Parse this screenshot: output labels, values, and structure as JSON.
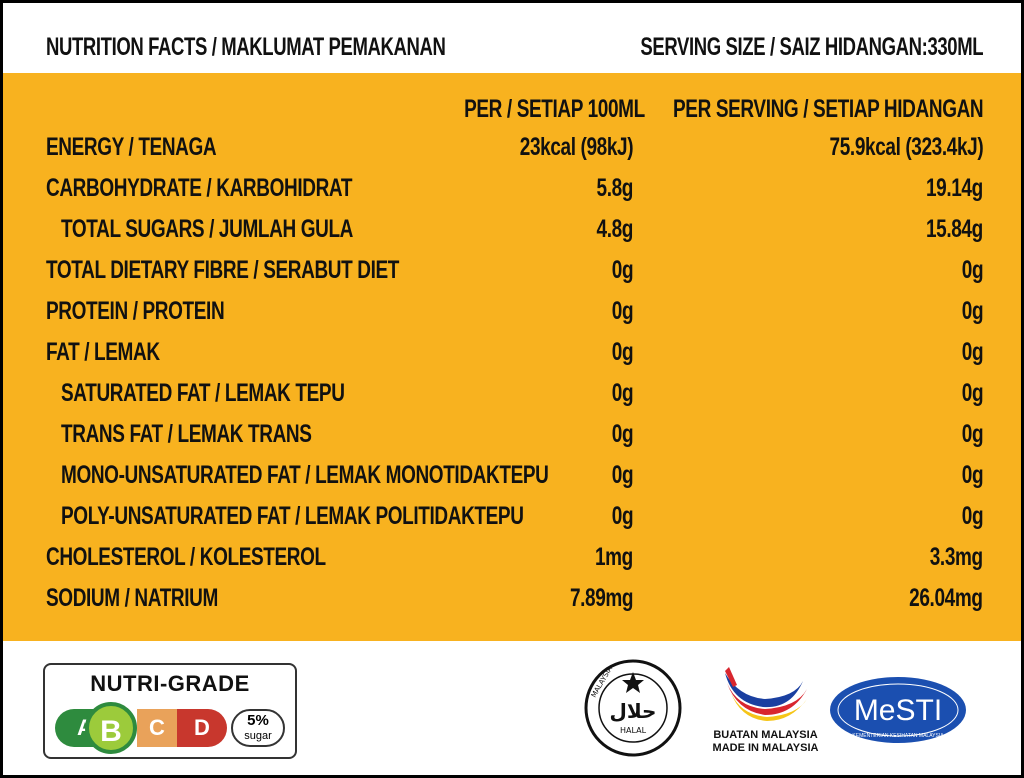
{
  "header": {
    "title": "NUTRITION FACTS / MAKLUMAT PEMAKANAN",
    "serving_size": "SERVING SIZE / SAIZ HIDANGAN:330ML"
  },
  "columns": {
    "per_100ml": "PER / SETIAP 100ML",
    "per_serving": "PER SERVING / SETIAP HIDANGAN"
  },
  "rows": [
    {
      "label": "ENERGY / TENAGA",
      "per_100ml": "23kcal (98kJ)",
      "per_serving": "75.9kcal (323.4kJ)",
      "sub": false
    },
    {
      "label": "CARBOHYDRATE / KARBOHIDRAT",
      "per_100ml": "5.8g",
      "per_serving": "19.14g",
      "sub": false
    },
    {
      "label": "TOTAL SUGARS / JUMLAH GULA",
      "per_100ml": "4.8g",
      "per_serving": "15.84g",
      "sub": true
    },
    {
      "label": "TOTAL DIETARY FIBRE / SERABUT DIET",
      "per_100ml": "0g",
      "per_serving": "0g",
      "sub": false
    },
    {
      "label": "PROTEIN / PROTEIN",
      "per_100ml": "0g",
      "per_serving": "0g",
      "sub": false
    },
    {
      "label": "FAT / LEMAK",
      "per_100ml": "0g",
      "per_serving": "0g",
      "sub": false
    },
    {
      "label": "SATURATED FAT / LEMAK TEPU",
      "per_100ml": "0g",
      "per_serving": "0g",
      "sub": true
    },
    {
      "label": "TRANS FAT / LEMAK TRANS",
      "per_100ml": "0g",
      "per_serving": "0g",
      "sub": true
    },
    {
      "label": "MONO-UNSATURATED FAT / LEMAK MONOTIDAKTEPU",
      "per_100ml": "0g",
      "per_serving": "0g",
      "sub": true
    },
    {
      "label": "POLY-UNSATURATED FAT / LEMAK POLITIDAKTEPU",
      "per_100ml": "0g",
      "per_serving": "0g",
      "sub": true
    },
    {
      "label": "CHOLESTEROL / KOLESTEROL",
      "per_100ml": "1mg",
      "per_serving": "3.3mg",
      "sub": false
    },
    {
      "label": "SODIUM / NATRIUM",
      "per_100ml": "7.89mg",
      "per_serving": "26.04mg",
      "sub": false
    }
  ],
  "nutri_grade": {
    "title": "NUTRI-GRADE",
    "grades": [
      "A",
      "B",
      "C",
      "D"
    ],
    "selected": "B",
    "sugar_percent": "5%",
    "sugar_label": "sugar"
  },
  "logos": {
    "halal_text": "حلال",
    "halal_sub": "HALAL",
    "halal_ring": "MALAYSIA",
    "made_in_1": "BUATAN MALAYSIA",
    "made_in_2": "MADE IN MALAYSIA",
    "mesti": "MeSTI",
    "mesti_sub": "KEMENTERIAN KESIHATAN MALAYSIA"
  },
  "colors": {
    "panel": "#f8b21f",
    "grade_a": "#2e8b3e",
    "grade_b": "#9ccb3b",
    "grade_c": "#e9a25a",
    "grade_d": "#c8372d"
  }
}
